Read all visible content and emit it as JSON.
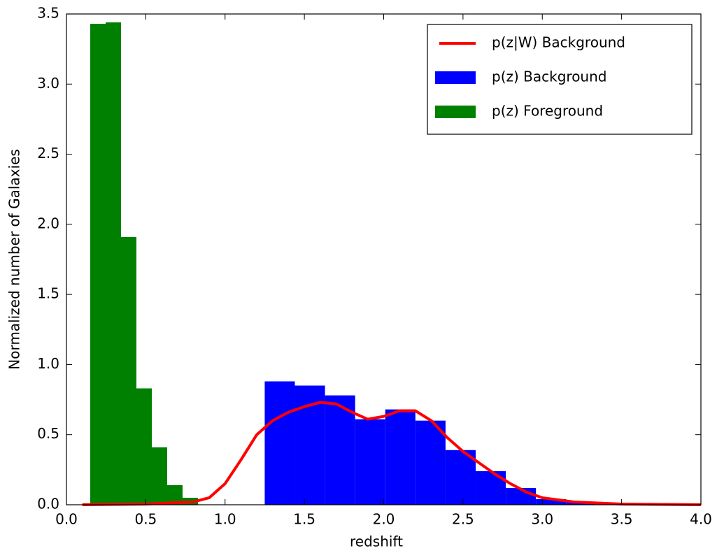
{
  "chart_data": {
    "type": "histogram",
    "xlabel": "redshift",
    "ylabel": "Normalized number of Galaxies",
    "xlim": [
      0,
      4
    ],
    "ylim": [
      0,
      3.5
    ],
    "xticks": [
      {
        "value": 0,
        "label": "0.0"
      },
      {
        "value": 0.5,
        "label": "0.5"
      },
      {
        "value": 1,
        "label": "1.0"
      },
      {
        "value": 1.5,
        "label": "1.5"
      },
      {
        "value": 2,
        "label": "2.0"
      },
      {
        "value": 2.5,
        "label": "2.5"
      },
      {
        "value": 3,
        "label": "3.0"
      },
      {
        "value": 3.5,
        "label": "3.5"
      },
      {
        "value": 4,
        "label": "4.0"
      }
    ],
    "yticks": [
      {
        "value": 0,
        "label": "0.0"
      },
      {
        "value": 0.5,
        "label": "0.5"
      },
      {
        "value": 1,
        "label": "1.0"
      },
      {
        "value": 1.5,
        "label": "1.5"
      },
      {
        "value": 2,
        "label": "2.0"
      },
      {
        "value": 2.5,
        "label": "2.5"
      },
      {
        "value": 3,
        "label": "3.0"
      },
      {
        "value": 3.5,
        "label": "3.5"
      }
    ],
    "legend": "upper right",
    "series": [
      {
        "name": "p(z|W) Background",
        "color": "#ff0000",
        "type": "line",
        "x": [
          0.1,
          0.5,
          0.8,
          0.9,
          1.0,
          1.1,
          1.2,
          1.3,
          1.4,
          1.5,
          1.6,
          1.7,
          1.8,
          1.9,
          2.0,
          2.1,
          2.2,
          2.3,
          2.4,
          2.5,
          2.6,
          2.7,
          2.8,
          2.9,
          3.0,
          3.2,
          3.5,
          4.0
        ],
        "values": [
          0,
          0.005,
          0.02,
          0.05,
          0.15,
          0.32,
          0.5,
          0.6,
          0.66,
          0.7,
          0.73,
          0.72,
          0.66,
          0.61,
          0.63,
          0.67,
          0.67,
          0.6,
          0.48,
          0.38,
          0.3,
          0.22,
          0.15,
          0.09,
          0.05,
          0.02,
          0.005,
          0
        ]
      },
      {
        "name": "p(z) Background",
        "color": "#0000ff",
        "type": "bars",
        "bins": [
          1.25,
          1.44,
          1.63,
          1.82,
          2.01,
          2.2,
          2.39,
          2.58,
          2.77,
          2.96,
          3.15,
          3.34
        ],
        "values": [
          0.88,
          0.85,
          0.78,
          0.61,
          0.68,
          0.6,
          0.39,
          0.24,
          0.12,
          0.04,
          0.02
        ]
      },
      {
        "name": "p(z) Foreground",
        "color": "#008000",
        "type": "bars",
        "bins": [
          0.15,
          0.247,
          0.344,
          0.441,
          0.538,
          0.635,
          0.732,
          0.829
        ],
        "values": [
          3.43,
          3.44,
          1.91,
          0.83,
          0.41,
          0.14,
          0.05
        ]
      }
    ]
  }
}
